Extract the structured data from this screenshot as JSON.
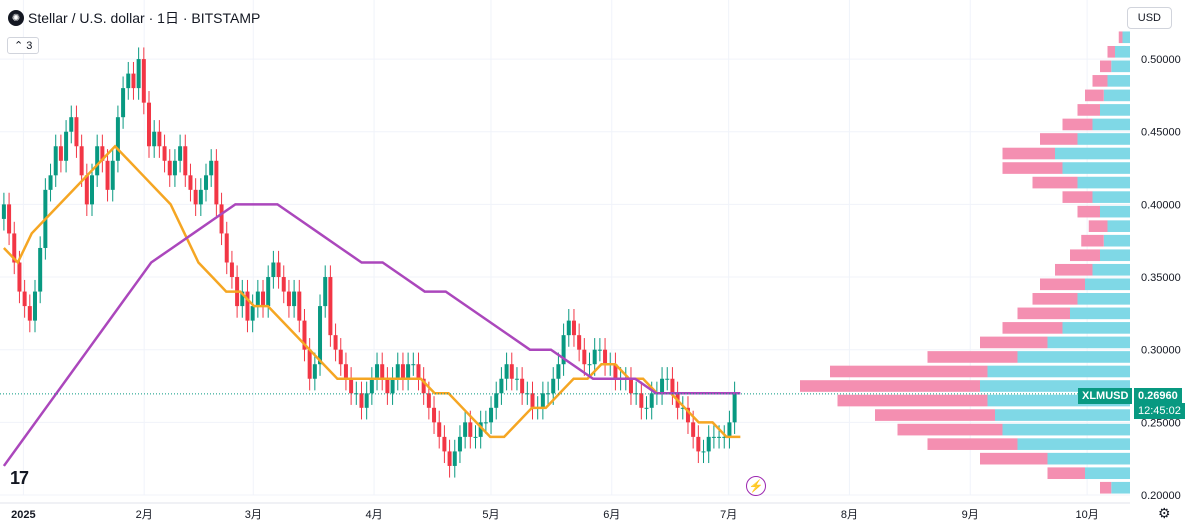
{
  "header": {
    "title": "Stellar / U.S. dollar · 1日 · BITSTAMP",
    "logo_glyph": "✺",
    "indicator_toggle": "3",
    "currency": "USD"
  },
  "price_marker": {
    "symbol": "XLMUSD",
    "price": "0.26960",
    "countdown": "12:45:02"
  },
  "branding": {
    "logo_text": "17",
    "bolt_glyph": "⚡",
    "settings_glyph": "⚙"
  },
  "colors": {
    "up": "#089981",
    "down": "#f23645",
    "ma_fast": "#f5a623",
    "ma_slow": "#ab47bc",
    "vp_up": "#7fd8e6",
    "vp_down": "#f48fb1"
  },
  "chart_data": {
    "type": "candlestick",
    "title": "Stellar / U.S. dollar · 1日 · BITSTAMP",
    "xlabel": "",
    "ylabel": "",
    "x_ticks": [
      "2025",
      "2月",
      "3月",
      "4月",
      "5月",
      "6月",
      "7月",
      "8月",
      "9月",
      "10月"
    ],
    "x_tick_days": [
      0,
      31,
      59,
      90,
      120,
      151,
      181,
      212,
      243,
      273
    ],
    "y_ticks": [
      "0.20000",
      "0.25000",
      "0.30000",
      "0.35000",
      "0.40000",
      "0.45000",
      "0.50000"
    ],
    "ylim": [
      0.2,
      0.52
    ],
    "xlim_days": [
      -6,
      284
    ],
    "last_price": 0.2696,
    "candles_close": [
      0.4,
      0.38,
      0.36,
      0.34,
      0.33,
      0.32,
      0.34,
      0.37,
      0.41,
      0.42,
      0.44,
      0.43,
      0.45,
      0.46,
      0.44,
      0.42,
      0.4,
      0.42,
      0.44,
      0.43,
      0.41,
      0.43,
      0.46,
      0.48,
      0.49,
      0.48,
      0.5,
      0.47,
      0.44,
      0.45,
      0.44,
      0.43,
      0.42,
      0.43,
      0.44,
      0.42,
      0.41,
      0.4,
      0.41,
      0.42,
      0.43,
      0.4,
      0.38,
      0.36,
      0.35,
      0.33,
      0.34,
      0.32,
      0.33,
      0.34,
      0.33,
      0.35,
      0.36,
      0.35,
      0.34,
      0.33,
      0.34,
      0.32,
      0.3,
      0.28,
      0.29,
      0.33,
      0.35,
      0.31,
      0.3,
      0.29,
      0.28,
      0.27,
      0.27,
      0.26,
      0.27,
      0.28,
      0.29,
      0.28,
      0.27,
      0.28,
      0.29,
      0.28,
      0.29,
      0.29,
      0.28,
      0.27,
      0.26,
      0.25,
      0.24,
      0.23,
      0.22,
      0.23,
      0.24,
      0.25,
      0.24,
      0.24,
      0.25,
      0.25,
      0.26,
      0.27,
      0.28,
      0.29,
      0.28,
      0.28,
      0.27,
      0.27,
      0.26,
      0.26,
      0.27,
      0.27,
      0.28,
      0.29,
      0.31,
      0.32,
      0.31,
      0.3,
      0.29,
      0.29,
      0.3,
      0.3,
      0.29,
      0.29,
      0.28,
      0.28,
      0.28,
      0.27,
      0.27,
      0.26,
      0.26,
      0.27,
      0.27,
      0.28,
      0.28,
      0.27,
      0.26,
      0.26,
      0.25,
      0.24,
      0.23,
      0.23,
      0.24,
      0.24,
      0.24,
      0.24,
      0.25,
      0.27
    ],
    "ma_fast": [
      0.37,
      0.36,
      0.38,
      0.39,
      0.4,
      0.41,
      0.42,
      0.43,
      0.44,
      0.43,
      0.42,
      0.41,
      0.4,
      0.38,
      0.36,
      0.35,
      0.34,
      0.34,
      0.33,
      0.33,
      0.32,
      0.31,
      0.3,
      0.29,
      0.28,
      0.28,
      0.28,
      0.28,
      0.28,
      0.28,
      0.28,
      0.27,
      0.27,
      0.26,
      0.25,
      0.24,
      0.24,
      0.25,
      0.26,
      0.26,
      0.27,
      0.28,
      0.28,
      0.29,
      0.29,
      0.28,
      0.28,
      0.27,
      0.27,
      0.26,
      0.25,
      0.25,
      0.24,
      0.24
    ],
    "ma_slow": [
      0.22,
      0.24,
      0.26,
      0.28,
      0.3,
      0.32,
      0.34,
      0.36,
      0.37,
      0.38,
      0.39,
      0.4,
      0.4,
      0.4,
      0.39,
      0.38,
      0.37,
      0.36,
      0.36,
      0.35,
      0.34,
      0.34,
      0.33,
      0.32,
      0.31,
      0.3,
      0.3,
      0.29,
      0.28,
      0.28,
      0.28,
      0.27,
      0.27,
      0.27,
      0.27,
      0.27
    ],
    "volume_profile": {
      "price_levels": [
        0.205,
        0.215,
        0.225,
        0.235,
        0.245,
        0.255,
        0.265,
        0.275,
        0.285,
        0.295,
        0.305,
        0.315,
        0.325,
        0.335,
        0.345,
        0.355,
        0.365,
        0.375,
        0.385,
        0.395,
        0.405,
        0.415,
        0.425,
        0.435,
        0.445,
        0.455,
        0.465,
        0.475,
        0.485,
        0.495,
        0.505,
        0.515
      ],
      "up_volume": [
        5,
        12,
        22,
        30,
        34,
        36,
        38,
        40,
        38,
        30,
        22,
        18,
        16,
        14,
        12,
        10,
        8,
        7,
        6,
        8,
        10,
        14,
        18,
        20,
        14,
        10,
        8,
        7,
        6,
        5,
        4,
        2
      ],
      "down_volume": [
        3,
        10,
        18,
        24,
        28,
        32,
        40,
        48,
        42,
        24,
        18,
        16,
        14,
        12,
        12,
        10,
        8,
        6,
        5,
        6,
        8,
        12,
        16,
        14,
        10,
        8,
        6,
        5,
        4,
        3,
        2,
        1
      ]
    }
  }
}
